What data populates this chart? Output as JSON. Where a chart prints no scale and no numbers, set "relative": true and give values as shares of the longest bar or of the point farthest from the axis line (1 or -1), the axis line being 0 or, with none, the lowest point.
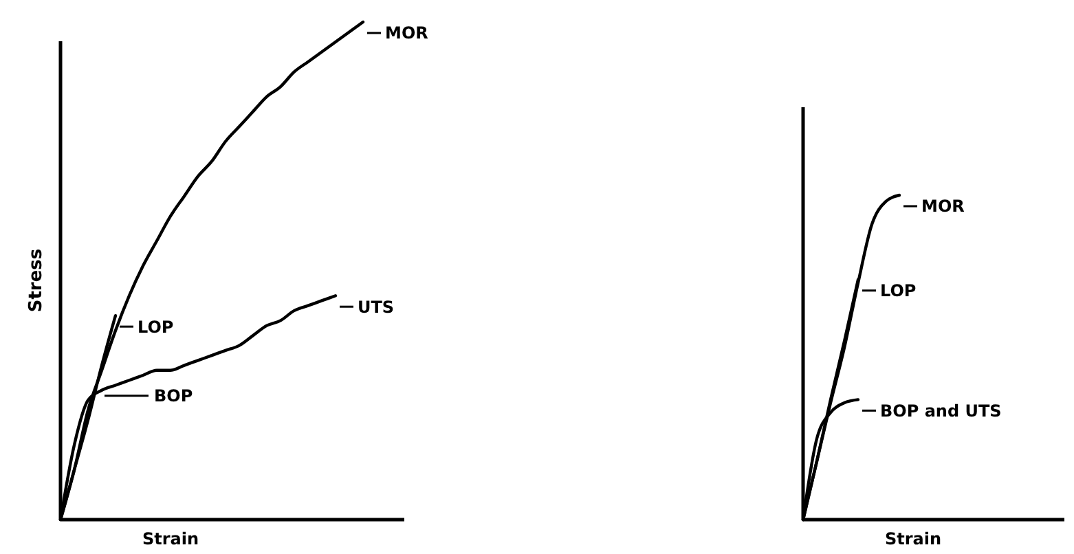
{
  "chart_data": [
    {
      "type": "line",
      "relative": true,
      "xlabel": "Strain",
      "ylabel": "Stress",
      "legend": "right",
      "categories": [
        null,
        null,
        null,
        null,
        null,
        null,
        null,
        null,
        null,
        null,
        null,
        null,
        null,
        null,
        null,
        null,
        null,
        null,
        null,
        null,
        null,
        null,
        null,
        null,
        null,
        null
      ],
      "series": [
        {
          "name": "MOR",
          "color": "#000000",
          "values": [
            0,
            0.1,
            0.22,
            0.3,
            0.38,
            0.45,
            0.51,
            0.56,
            0.61,
            0.65,
            0.69,
            0.72,
            0.76,
            0.79,
            0.82,
            0.85,
            0.87,
            0.9,
            0.92,
            0.94,
            0.96,
            0.98,
            1.0,
            null,
            null,
            null
          ]
        },
        {
          "name": "UTS",
          "color": "#000000",
          "values": [
            0,
            0.15,
            0.24,
            0.26,
            0.27,
            0.28,
            0.29,
            0.3,
            0.3,
            0.31,
            0.32,
            0.33,
            0.34,
            0.35,
            0.37,
            0.39,
            0.4,
            0.42,
            0.43,
            0.44,
            0.45,
            null,
            null,
            null,
            null,
            null
          ]
        },
        {
          "name": "LOP",
          "color": "#000000",
          "values": [
            0,
            0.1,
            0.2,
            0.31,
            0.41,
            null,
            null,
            null,
            null,
            null,
            null,
            null,
            null,
            null,
            null,
            null,
            null,
            null,
            null,
            null,
            null,
            null,
            null,
            null,
            null,
            null
          ]
        }
      ],
      "annotations": [
        "BOP"
      ]
    },
    {
      "type": "line",
      "relative": true,
      "xlabel": "Strain",
      "legend": "right",
      "categories": [
        null,
        null,
        null,
        null,
        null,
        null,
        null,
        null,
        null,
        null,
        null,
        null,
        null,
        null,
        null,
        null,
        null,
        null,
        null,
        null
      ],
      "series": [
        {
          "name": "MOR",
          "color": "#000000",
          "values": [
            0,
            0.18,
            0.36,
            0.53,
            0.73,
            0.91,
            0.98,
            1.0,
            null,
            null,
            null,
            null,
            null,
            null,
            null,
            null,
            null,
            null,
            null,
            null
          ]
        },
        {
          "name": "LOP",
          "color": "#000000",
          "values": [
            0,
            0.18,
            0.37,
            0.55,
            0.74,
            null,
            null,
            null,
            null,
            null,
            null,
            null,
            null,
            null,
            null,
            null,
            null,
            null,
            null,
            null
          ]
        },
        {
          "name": "BOP and UTS",
          "color": "#000000",
          "values": [
            0,
            0.25,
            0.33,
            0.36,
            0.37,
            null,
            null,
            null,
            null,
            null,
            null,
            null,
            null,
            null,
            null,
            null,
            null,
            null,
            null,
            null
          ]
        }
      ]
    }
  ]
}
